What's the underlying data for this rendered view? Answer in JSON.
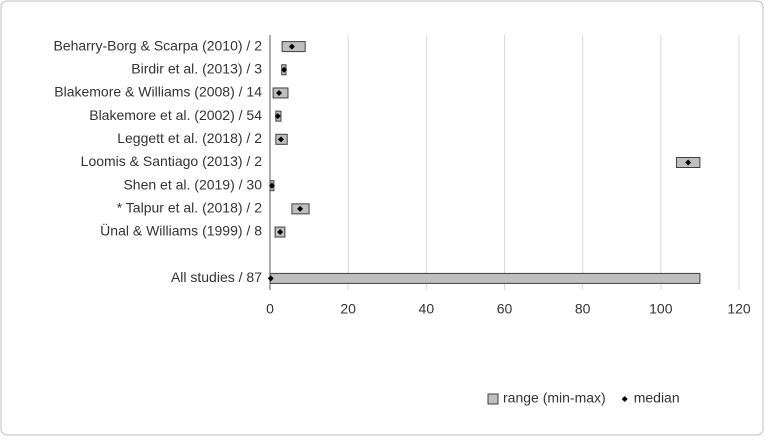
{
  "chart_data": {
    "type": "range",
    "categories": [
      "Beharry-Borg & Scarpa (2010) / 2",
      "Birdir et al. (2013) / 3",
      "Blakemore & Williams (2008) / 14",
      "Blakemore et al. (2002) / 54",
      "Leggett et al. (2018) / 2",
      "Loomis & Santiago (2013) / 2",
      "Shen et al. (2019) / 30",
      "* Talpur et al. (2018) / 2",
      "Ünal & Williams (1999) / 8",
      null,
      "All studies / 87"
    ],
    "series": [
      {
        "name": "range (min-max)",
        "color": "#bfbfbf",
        "low": [
          3.1,
          3.0,
          0.8,
          1.5,
          1.5,
          104,
          0,
          5.6,
          1.3,
          null,
          0
        ],
        "high": [
          9.0,
          4.1,
          4.6,
          2.8,
          4.4,
          110,
          1,
          10,
          3.8,
          null,
          110
        ]
      },
      {
        "name": "median",
        "color": "#000000",
        "values": [
          5.6,
          3.6,
          2.3,
          2.0,
          2.8,
          107,
          0.5,
          7.7,
          2.6,
          null,
          0.2
        ]
      }
    ],
    "xlim": [
      0,
      120
    ],
    "xticks": [
      0,
      20,
      40,
      60,
      80,
      100,
      120
    ],
    "grid": true,
    "legend": "bottom-right"
  }
}
